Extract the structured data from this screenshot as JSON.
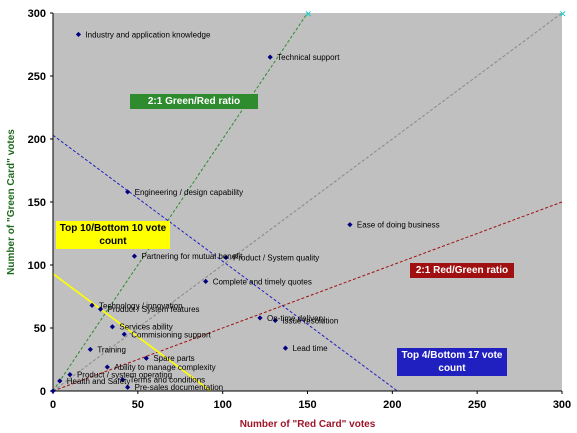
{
  "chart_data": {
    "type": "scatter",
    "xlabel": "Number of \"Red Card\" votes",
    "ylabel": "Number of \"Green Card\" votes",
    "xlim": [
      0,
      300
    ],
    "ylim": [
      0,
      300
    ],
    "x_ticks": [
      "0",
      "50",
      "100",
      "150",
      "200",
      "250",
      "300"
    ],
    "y_ticks": [
      "0",
      "50",
      "100",
      "150",
      "200",
      "250",
      "300"
    ],
    "grid": false,
    "plot_background": "#c0c0c0",
    "marker_color": "#000080",
    "points": [
      {
        "label": "Industry and application knowledge",
        "x": 15,
        "y": 283
      },
      {
        "label": "Technical support",
        "x": 128,
        "y": 265
      },
      {
        "label": "Engineering / design capability",
        "x": 44,
        "y": 158
      },
      {
        "label": "Ease of doing business",
        "x": 175,
        "y": 132
      },
      {
        "label": "Partnering for mutual benefit",
        "x": 48,
        "y": 107
      },
      {
        "label": "Product / System quality",
        "x": 102,
        "y": 106
      },
      {
        "label": "Complete and timely quotes",
        "x": 90,
        "y": 87
      },
      {
        "label": "Technology / innovation",
        "x": 23,
        "y": 68
      },
      {
        "label": "Product / System features",
        "x": 28,
        "y": 65
      },
      {
        "label": "On-time delivery",
        "x": 122,
        "y": 58
      },
      {
        "label": "Issue resolution",
        "x": 131,
        "y": 56
      },
      {
        "label": "Services ability",
        "x": 35,
        "y": 51
      },
      {
        "label": "Commisioning support",
        "x": 42,
        "y": 45
      },
      {
        "label": "Training",
        "x": 22,
        "y": 33
      },
      {
        "label": "Lead time",
        "x": 137,
        "y": 34
      },
      {
        "label": "Spare parts",
        "x": 55,
        "y": 26
      },
      {
        "label": "Ability to manage complexity",
        "x": 32,
        "y": 19
      },
      {
        "label": "Product / system operating",
        "x": 10,
        "y": 13
      },
      {
        "label": "Health and Safety",
        "x": 4,
        "y": 8
      },
      {
        "label": "Terms and conditions",
        "x": 41,
        "y": 9
      },
      {
        "label": "Pre-sales documentation",
        "x": 44,
        "y": 3
      },
      {
        "label": "",
        "x": 0,
        "y": 0
      }
    ],
    "reference_lines": [
      {
        "name": "2:1 Green/Red ratio",
        "from": [
          0,
          0
        ],
        "to": [
          150,
          300
        ],
        "color": "#2e8b2e",
        "dash": true
      },
      {
        "name": "2:1 Red/Green ratio",
        "from": [
          0,
          0
        ],
        "to": [
          300,
          150
        ],
        "color": "#a01010",
        "dash": true
      },
      {
        "name": "1:1",
        "from": [
          0,
          0
        ],
        "to": [
          300,
          300
        ],
        "color": "#888888",
        "dash": true
      },
      {
        "name": "Top 4/Bottom 17 vote count",
        "from": [
          0,
          203
        ],
        "to": [
          203,
          0
        ],
        "color": "#2020c0",
        "dash": true
      },
      {
        "name": "Top 10/Bottom 10 vote count",
        "from": [
          0,
          93
        ],
        "to": [
          93,
          0
        ],
        "color": "#ffff00",
        "dash": false
      }
    ],
    "annotations": [
      {
        "text": "2:1 Green/Red ratio",
        "bg": "#2e8b2e",
        "fg": "#ffffff"
      },
      {
        "text": "Top 10/Bottom 10 vote count",
        "bg": "#ffff00",
        "fg": "#000000"
      },
      {
        "text": "2:1 Red/Green ratio",
        "bg": "#a01010",
        "fg": "#ffffff"
      },
      {
        "text": "Top 4/Bottom 17 vote count",
        "bg": "#2020c0",
        "fg": "#ffffff"
      }
    ]
  }
}
